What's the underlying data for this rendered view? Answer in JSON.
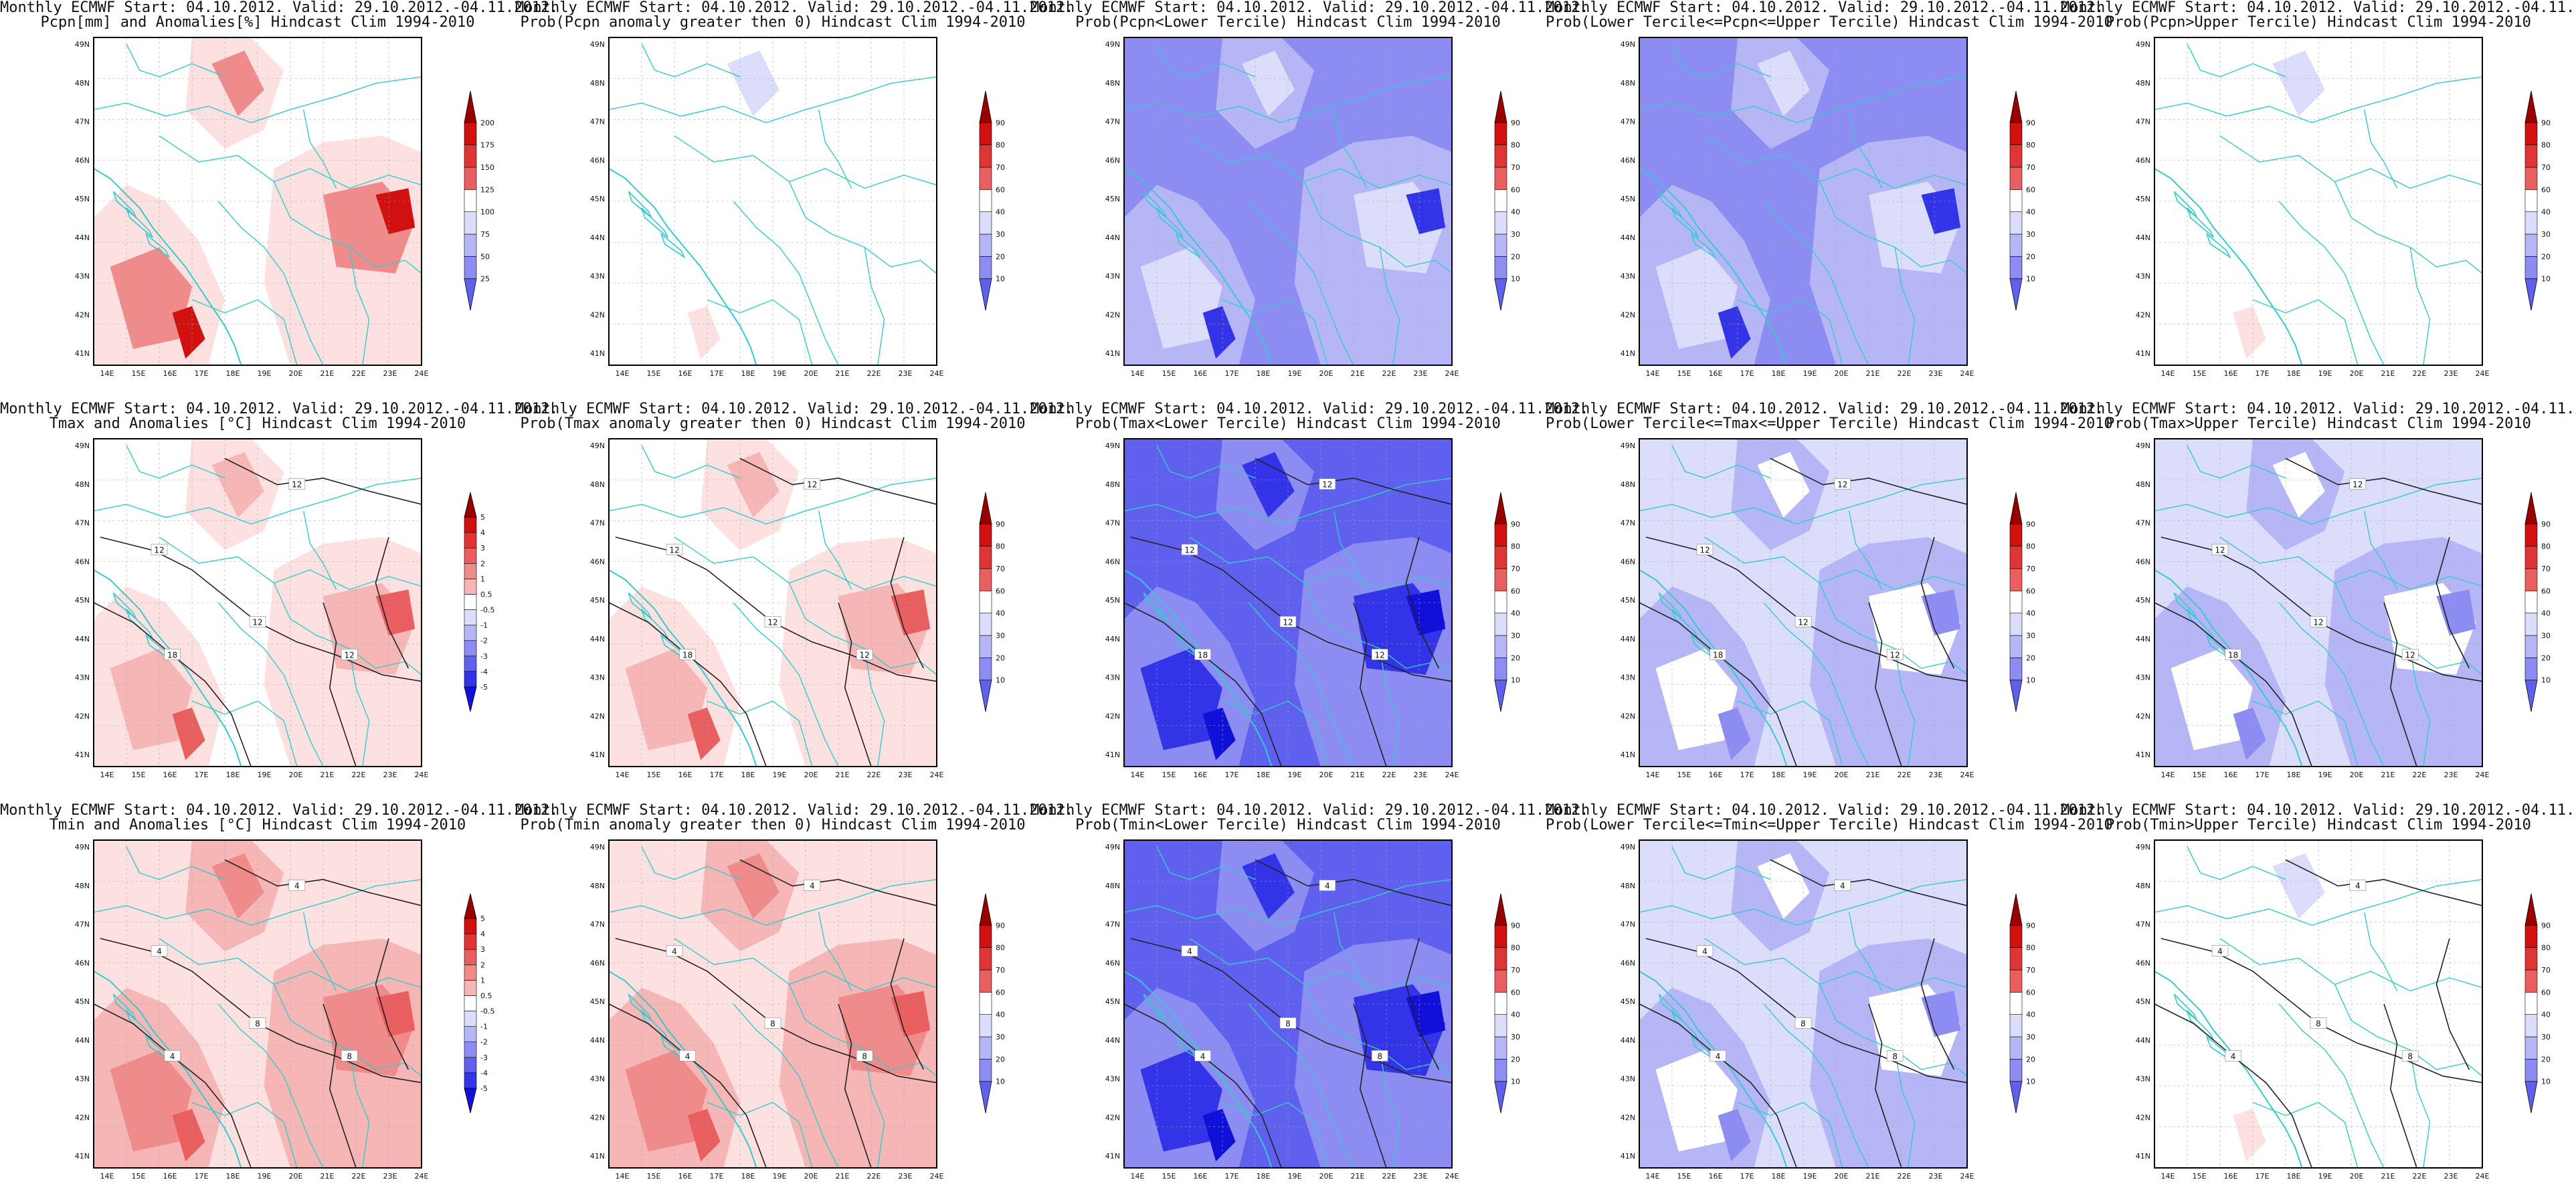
{
  "figure": {
    "title_line1": "Monthly ECMWF Start: 04.10.2012. Valid: 29.10.2012.-04.11.2012.",
    "lat_labels": [
      "41N",
      "42N",
      "43N",
      "44N",
      "45N",
      "46N",
      "47N",
      "48N",
      "49N"
    ],
    "lon_labels": [
      "14E",
      "15E",
      "16E",
      "17E",
      "18E",
      "19E",
      "20E",
      "21E",
      "22E",
      "23E",
      "24E"
    ],
    "colors": {
      "coast": "#33cccc",
      "contour": "#222222",
      "pos": [
        "#fde0e0",
        "#f7b6b6",
        "#f08b8b",
        "#e95f5f",
        "#e03535",
        "#d11010",
        "#990000"
      ],
      "neg": [
        "#dcdcfb",
        "#b6b6f7",
        "#8c8cf2",
        "#6060ee",
        "#3333e8",
        "#1010d8",
        "#000088"
      ]
    },
    "panels": [
      {
        "id": "r1c1",
        "title_line2": "Pcpn[mm] and Anomalies[%] Hindcast Clim 1994-2010",
        "colorbar": {
          "levels": [
            "25",
            "50",
            "75",
            "100",
            "125",
            "150",
            "175",
            "200"
          ],
          "order": "neg-low"
        },
        "contour_labels": [],
        "fill_style": "red-blobs"
      },
      {
        "id": "r1c2",
        "title_line2": "Prob(Pcpn anomaly greater then 0) Hindcast Clim 1994-2010",
        "colorbar": {
          "levels": [
            "10",
            "20",
            "30",
            "40",
            "60",
            "70",
            "80",
            "90"
          ],
          "order": "neg-low"
        },
        "contour_labels": [],
        "fill_style": "mostly-white"
      },
      {
        "id": "r1c3",
        "title_line2": "Prob(Pcpn<Lower Tercile) Hindcast Clim 1994-2010",
        "colorbar": {
          "levels": [
            "10",
            "20",
            "30",
            "40",
            "60",
            "70",
            "80",
            "90"
          ],
          "order": "neg-low"
        },
        "contour_labels": [],
        "fill_style": "blue-heavy"
      },
      {
        "id": "r1c4",
        "title_line2": "Prob(Lower Tercile<=Pcpn<=Upper Tercile) Hindcast Clim 1994-2010",
        "colorbar": {
          "levels": [
            "10",
            "20",
            "30",
            "40",
            "60",
            "70",
            "80",
            "90"
          ],
          "order": "neg-low"
        },
        "contour_labels": [],
        "fill_style": "blue-heavy"
      },
      {
        "id": "r1c5",
        "title_line2": "Prob(Pcpn>Upper Tercile) Hindcast Clim 1994-2010",
        "colorbar": {
          "levels": [
            "10",
            "20",
            "30",
            "40",
            "60",
            "70",
            "80",
            "90"
          ],
          "order": "neg-low"
        },
        "contour_labels": [],
        "fill_style": "mostly-white"
      },
      {
        "id": "r2c1",
        "title_line2": "Tmax and Anomalies [°C] Hindcast Clim 1994-2010",
        "colorbar": {
          "levels": [
            "-5",
            "-4",
            "-3",
            "-2",
            "-1",
            "-0.5",
            "0.5",
            "1",
            "2",
            "3",
            "4",
            "5"
          ],
          "order": "neg-low"
        },
        "contour_labels": [
          "12",
          "12",
          "12",
          "18",
          "12"
        ],
        "fill_style": "red-light"
      },
      {
        "id": "r2c2",
        "title_line2": "Prob(Tmax anomaly greater then 0) Hindcast Clim 1994-2010",
        "colorbar": {
          "levels": [
            "10",
            "20",
            "30",
            "40",
            "60",
            "70",
            "80",
            "90"
          ],
          "order": "neg-low"
        },
        "contour_labels": [
          "12",
          "12",
          "12",
          "18",
          "12"
        ],
        "fill_style": "red-light"
      },
      {
        "id": "r2c3",
        "title_line2": "Prob(Tmax<Lower Tercile) Hindcast Clim 1994-2010",
        "colorbar": {
          "levels": [
            "10",
            "20",
            "30",
            "40",
            "60",
            "70",
            "80",
            "90"
          ],
          "order": "neg-low"
        },
        "contour_labels": [
          "12",
          "12",
          "12",
          "18",
          "12"
        ],
        "fill_style": "blue-full"
      },
      {
        "id": "r2c4",
        "title_line2": "Prob(Lower Tercile<=Tmax<=Upper Tercile) Hindcast Clim 1994-2010",
        "colorbar": {
          "levels": [
            "10",
            "20",
            "30",
            "40",
            "60",
            "70",
            "80",
            "90"
          ],
          "order": "neg-low"
        },
        "contour_labels": [
          "12",
          "12",
          "12",
          "18",
          "12"
        ],
        "fill_style": "blue-light"
      },
      {
        "id": "r2c5",
        "title_line2": "Prob(Tmax>Upper Tercile) Hindcast Clim 1994-2010",
        "colorbar": {
          "levels": [
            "10",
            "20",
            "30",
            "40",
            "60",
            "70",
            "80",
            "90"
          ],
          "order": "neg-low"
        },
        "contour_labels": [
          "12",
          "12",
          "12",
          "18",
          "12"
        ],
        "fill_style": "blue-light"
      },
      {
        "id": "r3c1",
        "title_line2": "Tmin and Anomalies [°C] Hindcast Clim 1994-2010",
        "colorbar": {
          "levels": [
            "-5",
            "-4",
            "-3",
            "-2",
            "-1",
            "-0.5",
            "0.5",
            "1",
            "2",
            "3",
            "4",
            "5"
          ],
          "order": "neg-low"
        },
        "contour_labels": [
          "4",
          "4",
          "8",
          "4",
          "8"
        ],
        "fill_style": "red-medium"
      },
      {
        "id": "r3c2",
        "title_line2": "Prob(Tmin anomaly greater then 0) Hindcast Clim 1994-2010",
        "colorbar": {
          "levels": [
            "10",
            "20",
            "30",
            "40",
            "60",
            "70",
            "80",
            "90"
          ],
          "order": "neg-low"
        },
        "contour_labels": [
          "4",
          "4",
          "8",
          "4",
          "8"
        ],
        "fill_style": "red-medium"
      },
      {
        "id": "r3c3",
        "title_line2": "Prob(Tmin<Lower Tercile) Hindcast Clim 1994-2010",
        "colorbar": {
          "levels": [
            "10",
            "20",
            "30",
            "40",
            "60",
            "70",
            "80",
            "90"
          ],
          "order": "neg-low"
        },
        "contour_labels": [
          "4",
          "4",
          "8",
          "4",
          "8"
        ],
        "fill_style": "blue-full"
      },
      {
        "id": "r3c4",
        "title_line2": "Prob(Lower Tercile<=Tmin<=Upper Tercile) Hindcast Clim 1994-2010",
        "colorbar": {
          "levels": [
            "10",
            "20",
            "30",
            "40",
            "60",
            "70",
            "80",
            "90"
          ],
          "order": "neg-low"
        },
        "contour_labels": [
          "4",
          "4",
          "8",
          "4",
          "8"
        ],
        "fill_style": "blue-light"
      },
      {
        "id": "r3c5",
        "title_line2": "Prob(Tmin>Upper Tercile) Hindcast Clim 1994-2010",
        "colorbar": {
          "levels": [
            "10",
            "20",
            "30",
            "40",
            "60",
            "70",
            "80",
            "90"
          ],
          "order": "neg-low"
        },
        "contour_labels": [
          "4",
          "4",
          "8",
          "4",
          "8"
        ],
        "fill_style": "mostly-white"
      }
    ]
  }
}
